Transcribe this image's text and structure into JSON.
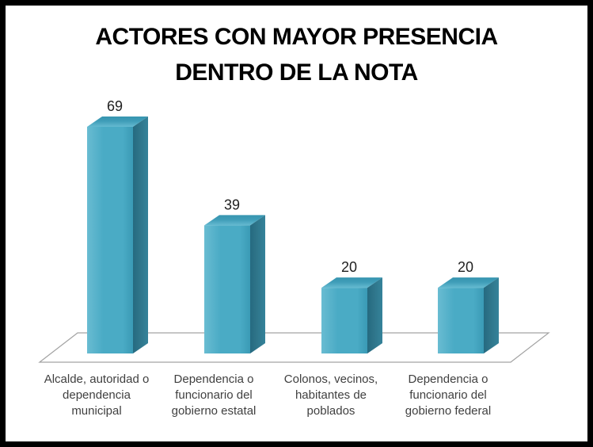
{
  "chart_data": {
    "type": "bar",
    "variant": "3d-column",
    "title": "ACTORES CON MAYOR PRESENCIA DENTRO DE LA NOTA",
    "title_display": "ACTORES CON MAYOR PRESENCIA\nDENTRO DE LA NOTA",
    "categories": [
      "Alcalde, autoridad o\ndependencia\nmunicipal",
      "Dependencia o\nfuncionario del\ngobierno estatal",
      "Colonos, vecinos,\nhabitantes de\npoblados",
      "Dependencia o\nfuncionario del\ngobierno federal"
    ],
    "values": [
      69,
      39,
      20,
      20
    ],
    "data_labels": true,
    "xlabel": "",
    "ylabel": "",
    "ylim": [
      0,
      69
    ],
    "legend": "none",
    "gridlines": false,
    "axes_visible": false,
    "floor_visible": true,
    "colors": {
      "bar_front_light": "#69bcd2",
      "bar_front": "#4aabc5",
      "bar_front_dark": "#3a9ab5",
      "bar_side_dark": "#256a80",
      "bar_side": "#2e7489",
      "bar_side_light": "#35839a",
      "bar_top_light": "#65bad1",
      "bar_top": "#3f9db8",
      "bar_top_dark": "#3795b0",
      "floor_stroke": "#a3a3a3",
      "category_text": "#404040",
      "value_text": "#202020",
      "title_text": "#000000",
      "frame_border": "#000000",
      "background": "#ffffff"
    }
  }
}
